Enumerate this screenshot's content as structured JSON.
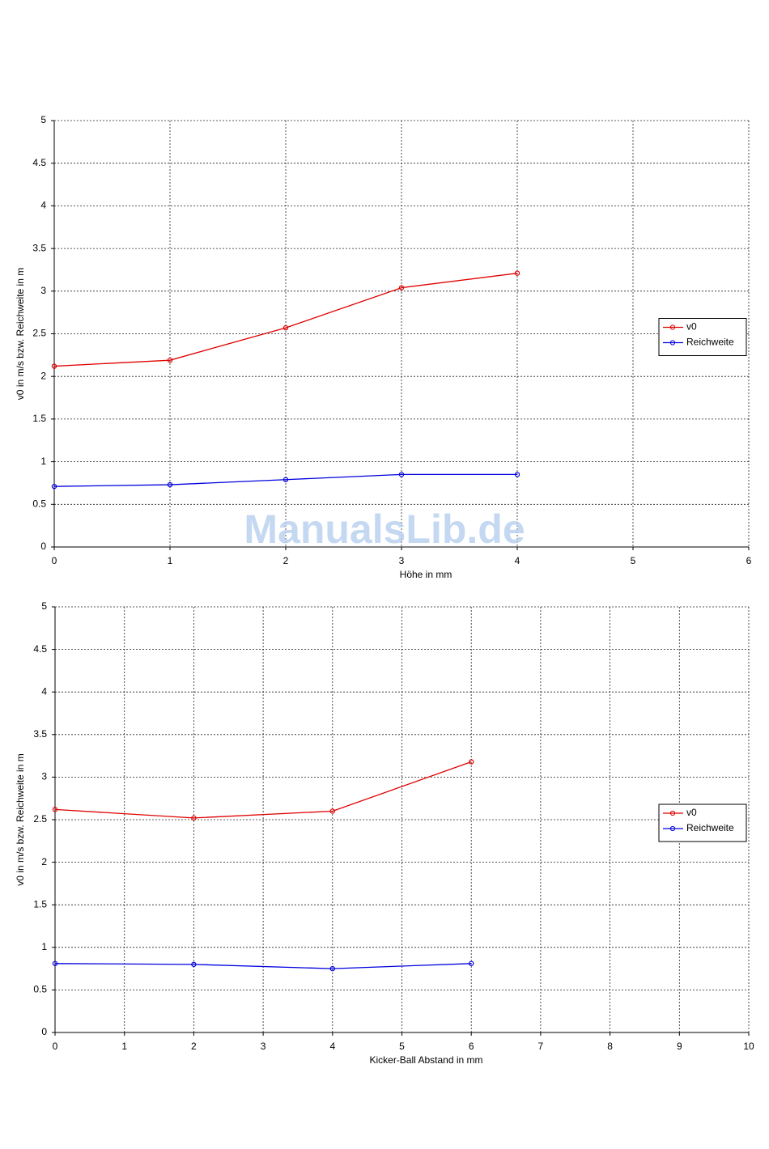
{
  "watermark": "ManualsLib.de",
  "chart_data": [
    {
      "type": "line",
      "xlabel": "Höhe in mm",
      "ylabel": "v0 in m/s bzw. Reichweite in m",
      "x": [
        0,
        1,
        2,
        3,
        4
      ],
      "series": [
        {
          "name": "v0",
          "color": "#e00000",
          "values": [
            2.12,
            2.19,
            2.57,
            3.04,
            3.21
          ]
        },
        {
          "name": "Reichweite",
          "color": "#0000e0",
          "values": [
            0.71,
            0.73,
            0.79,
            0.85,
            0.85
          ]
        }
      ],
      "xlim": [
        0,
        6
      ],
      "xticks": [
        0,
        1,
        2,
        3,
        4,
        5,
        6
      ],
      "ylim": [
        0,
        5
      ],
      "yticks": [
        0,
        0.5,
        1,
        1.5,
        2,
        2.5,
        3,
        3.5,
        4,
        4.5,
        5
      ],
      "grid": true,
      "legend": "east"
    },
    {
      "type": "line",
      "xlabel": "Kicker-Ball Abstand in mm",
      "ylabel": "v0 in m/s bzw. Reichweite in m",
      "x": [
        0,
        2,
        4,
        6
      ],
      "series": [
        {
          "name": "v0",
          "color": "#e00000",
          "values": [
            2.62,
            2.52,
            2.6,
            3.18
          ]
        },
        {
          "name": "Reichweite",
          "color": "#0000e0",
          "values": [
            0.81,
            0.8,
            0.75,
            0.81
          ]
        }
      ],
      "xlim": [
        0,
        10
      ],
      "xticks": [
        0,
        1,
        2,
        3,
        4,
        5,
        6,
        7,
        8,
        9,
        10
      ],
      "ylim": [
        0,
        5
      ],
      "yticks": [
        0,
        0.5,
        1,
        1.5,
        2,
        2.5,
        3,
        3.5,
        4,
        4.5,
        5
      ],
      "grid": true,
      "legend": "east"
    }
  ]
}
